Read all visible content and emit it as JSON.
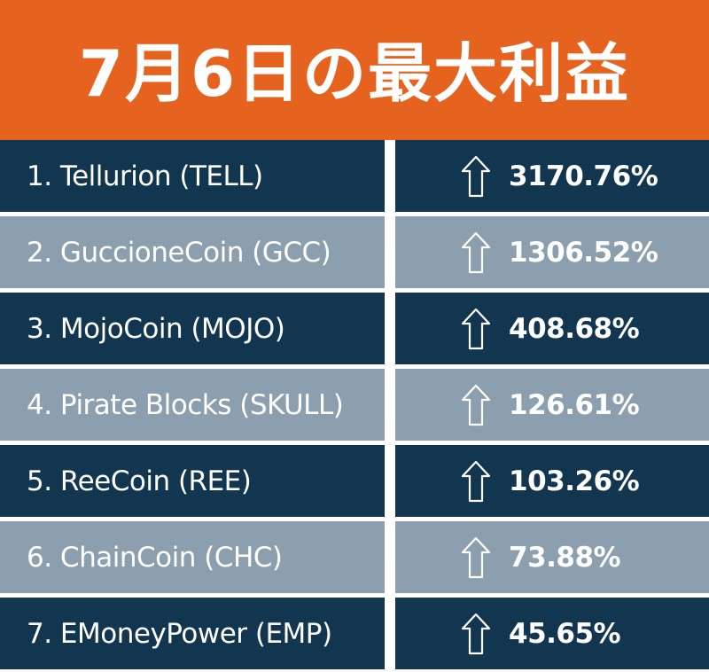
{
  "header": {
    "title": "7月6日の最大利益"
  },
  "colors": {
    "header_bg": "#e5621f",
    "row_dark": "#12364f",
    "row_light": "#8b9fae",
    "text": "#ffffff"
  },
  "rows": [
    {
      "name": "1. Tellurion (TELL)",
      "change": "3170.76%",
      "icon": "up-arrow-icon"
    },
    {
      "name": "2. GuccioneCoin (GCC)",
      "change": "1306.52%",
      "icon": "up-arrow-icon"
    },
    {
      "name": "3. MojoCoin (MOJO)",
      "change": "408.68%",
      "icon": "up-arrow-icon"
    },
    {
      "name": "4. Pirate Blocks (SKULL)",
      "change": "126.61%",
      "icon": "up-arrow-icon"
    },
    {
      "name": "5. ReeCoin (REE)",
      "change": "103.26%",
      "icon": "up-arrow-icon"
    },
    {
      "name": "6. ChainCoin (CHC)",
      "change": "73.88%",
      "icon": "up-arrow-icon"
    },
    {
      "name": "7. EMoneyPower (EMP)",
      "change": "45.65%",
      "icon": "up-arrow-icon"
    }
  ]
}
